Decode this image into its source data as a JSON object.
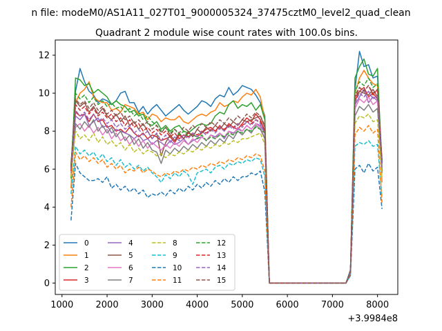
{
  "suptitle": "n file: modeM0/AS1A11_027T01_9000005324_37475cztM0_level2_quad_clean",
  "chart_data": {
    "type": "line",
    "title": "Quadrant 2 module wise count rates with 100.0s bins.",
    "xlabel": "",
    "ylabel": "",
    "x_offset_label": "+3.9984e8",
    "xlim": [
      850,
      8450
    ],
    "ylim": [
      -0.6,
      12.8
    ],
    "x_ticks": [
      1000,
      2000,
      3000,
      4000,
      5000,
      6000,
      7000,
      8000
    ],
    "x_tick_labels": [
      "1000",
      "2000",
      "3000",
      "4000",
      "5000",
      "6000",
      "7000",
      "8000"
    ],
    "y_ticks": [
      0,
      2,
      4,
      6,
      8,
      10,
      12
    ],
    "y_tick_labels": [
      "0",
      "2",
      "4",
      "6",
      "8",
      "10",
      "12"
    ],
    "grid": false,
    "legend_position": "lower-left",
    "legend_columns": 4,
    "x": [
      1200,
      1300,
      1400,
      1500,
      1600,
      1700,
      1800,
      1900,
      2000,
      2100,
      2200,
      2300,
      2400,
      2500,
      2600,
      2700,
      2800,
      2900,
      3000,
      3100,
      3200,
      3300,
      3400,
      3500,
      3600,
      3700,
      3800,
      3900,
      4000,
      4100,
      4200,
      4300,
      4400,
      4500,
      4600,
      4700,
      4800,
      4900,
      5000,
      5100,
      5200,
      5300,
      5400,
      5500,
      5600,
      5700,
      5800,
      5900,
      6000,
      6100,
      6200,
      6300,
      6400,
      6500,
      6600,
      6700,
      6800,
      6900,
      7000,
      7100,
      7200,
      7300,
      7400,
      7500,
      7600,
      7700,
      7800,
      7900,
      8000,
      8100
    ],
    "series": [
      {
        "name": "0",
        "dash": "solid",
        "color": "#1f77b4",
        "values": [
          6.0,
          10.1,
          11.3,
          10.6,
          10.1,
          9.9,
          9.5,
          9.7,
          9.6,
          9.4,
          9.6,
          10.0,
          10.1,
          9.5,
          9.5,
          9.0,
          9.3,
          8.9,
          9.2,
          9.4,
          9.1,
          8.8,
          9.0,
          9.2,
          9.4,
          9.1,
          8.9,
          9.1,
          9.3,
          9.6,
          9.5,
          9.3,
          9.7,
          9.9,
          9.8,
          10.3,
          9.9,
          10.1,
          10.4,
          10.3,
          10.2,
          9.9,
          9.5,
          8.8,
          0,
          0,
          0,
          0,
          0,
          0,
          0,
          0,
          0,
          0,
          0,
          0,
          0,
          0,
          0,
          0,
          0,
          0,
          0.7,
          10.2,
          12.2,
          11.4,
          11.5,
          10.8,
          10.9,
          6.3
        ]
      },
      {
        "name": "1",
        "dash": "solid",
        "color": "#ff7f0e",
        "values": [
          5.0,
          9.5,
          10.0,
          10.2,
          10.6,
          9.8,
          9.6,
          9.5,
          9.5,
          9.1,
          9.2,
          9.0,
          9.4,
          9.3,
          9.2,
          8.9,
          9.0,
          8.6,
          8.9,
          8.8,
          8.5,
          8.7,
          8.6,
          8.6,
          8.8,
          8.5,
          8.4,
          8.6,
          8.8,
          8.9,
          8.8,
          9.0,
          9.1,
          9.5,
          9.3,
          9.4,
          9.6,
          9.5,
          9.8,
          10.0,
          9.9,
          10.2,
          9.8,
          8.6,
          0,
          0,
          0,
          0,
          0,
          0,
          0,
          0,
          0,
          0,
          0,
          0,
          0,
          0,
          0,
          0,
          0,
          0,
          0.6,
          10.0,
          10.8,
          11.2,
          10.8,
          10.5,
          10.4,
          5.3
        ]
      },
      {
        "name": "2",
        "dash": "solid",
        "color": "#2ca02c",
        "values": [
          5.5,
          10.8,
          10.7,
          10.4,
          10.5,
          10.0,
          10.2,
          10.0,
          9.8,
          9.4,
          9.6,
          9.4,
          9.3,
          9.0,
          9.1,
          8.8,
          8.9,
          8.4,
          8.3,
          8.5,
          8.1,
          8.3,
          8.0,
          8.2,
          8.3,
          8.0,
          7.9,
          8.1,
          8.3,
          8.4,
          8.3,
          8.4,
          8.8,
          9.0,
          8.9,
          9.4,
          9.6,
          9.2,
          9.4,
          9.3,
          9.5,
          9.1,
          9.4,
          8.6,
          0,
          0,
          0,
          0,
          0,
          0,
          0,
          0,
          0,
          0,
          0,
          0,
          0,
          0,
          0,
          0,
          0,
          0,
          0.6,
          10.8,
          11.4,
          11.8,
          11.0,
          10.9,
          11.3,
          5.9
        ]
      },
      {
        "name": "3",
        "dash": "solid",
        "color": "#d62728",
        "values": [
          6.3,
          9.0,
          8.8,
          8.9,
          8.5,
          8.9,
          8.5,
          8.6,
          8.2,
          8.3,
          8.0,
          8.1,
          7.9,
          8.2,
          7.9,
          7.7,
          7.9,
          7.6,
          7.8,
          7.7,
          7.5,
          7.6,
          7.7,
          7.4,
          7.8,
          7.6,
          7.9,
          7.8,
          7.7,
          7.9,
          8.1,
          8.2,
          8.0,
          8.3,
          8.0,
          8.4,
          8.2,
          8.1,
          8.4,
          8.7,
          8.5,
          8.9,
          8.6,
          8.0,
          0,
          0,
          0,
          0,
          0,
          0,
          0,
          0,
          0,
          0,
          0,
          0,
          0,
          0,
          0,
          0,
          0,
          0,
          0.6,
          9.6,
          10.1,
          10.3,
          9.8,
          10.0,
          9.7,
          6.5
        ]
      },
      {
        "name": "4",
        "dash": "solid",
        "color": "#9467bd",
        "values": [
          6.0,
          8.8,
          8.6,
          8.9,
          8.3,
          8.5,
          8.7,
          8.2,
          8.3,
          7.9,
          8.1,
          8.0,
          7.9,
          7.8,
          7.6,
          7.8,
          7.5,
          7.6,
          7.3,
          7.5,
          7.4,
          7.2,
          7.5,
          7.3,
          7.4,
          7.6,
          7.3,
          7.5,
          7.6,
          7.7,
          7.5,
          7.8,
          7.7,
          7.9,
          7.6,
          8.0,
          7.9,
          8.1,
          8.0,
          8.3,
          8.1,
          8.4,
          8.3,
          7.9,
          0,
          0,
          0,
          0,
          0,
          0,
          0,
          0,
          0,
          0,
          0,
          0,
          0,
          0,
          0,
          0,
          0,
          0,
          0.6,
          9.4,
          9.8,
          10.2,
          9.5,
          9.8,
          9.6,
          6.2
        ]
      },
      {
        "name": "5",
        "dash": "solid",
        "color": "#8c564b",
        "values": [
          6.1,
          9.6,
          9.3,
          9.5,
          9.0,
          9.3,
          8.9,
          9.2,
          8.8,
          8.6,
          8.9,
          8.5,
          8.8,
          8.3,
          8.5,
          8.1,
          8.4,
          8.0,
          7.6,
          7.9,
          6.7,
          7.4,
          7.8,
          7.5,
          7.9,
          7.6,
          8.0,
          7.7,
          8.1,
          7.9,
          8.2,
          8.0,
          8.3,
          8.1,
          8.4,
          8.2,
          8.5,
          8.3,
          8.6,
          8.5,
          8.6,
          8.7,
          8.8,
          8.2,
          0,
          0,
          0,
          0,
          0,
          0,
          0,
          0,
          0,
          0,
          0,
          0,
          0,
          0,
          0,
          0,
          0,
          0,
          0.6,
          9.8,
          10.1,
          10.0,
          9.9,
          10.2,
          9.8,
          6.3
        ]
      },
      {
        "name": "6",
        "dash": "solid",
        "color": "#e377c2",
        "values": [
          5.7,
          8.2,
          8.4,
          8.0,
          8.3,
          7.9,
          8.2,
          7.8,
          8.1,
          7.6,
          7.9,
          7.5,
          7.7,
          7.3,
          7.6,
          7.2,
          7.5,
          7.1,
          7.4,
          7.2,
          7.0,
          7.3,
          7.1,
          7.4,
          7.2,
          7.5,
          7.3,
          7.6,
          7.4,
          7.7,
          7.5,
          7.8,
          7.6,
          7.9,
          7.7,
          8.0,
          7.8,
          8.2,
          8.0,
          8.3,
          8.1,
          8.4,
          8.2,
          7.6,
          0,
          0,
          0,
          0,
          0,
          0,
          0,
          0,
          0,
          0,
          0,
          0,
          0,
          0,
          0,
          0,
          0,
          0,
          0.6,
          9.2,
          9.7,
          9.5,
          9.8,
          9.4,
          9.6,
          6.0
        ]
      },
      {
        "name": "7",
        "dash": "solid",
        "color": "#7f7f7f",
        "values": [
          5.8,
          8.4,
          8.1,
          8.5,
          8.2,
          8.6,
          8.0,
          8.3,
          7.9,
          8.2,
          7.7,
          8.0,
          7.5,
          7.8,
          7.3,
          7.6,
          7.1,
          7.4,
          7.0,
          6.9,
          6.3,
          7.0,
          6.8,
          7.1,
          6.9,
          7.2,
          7.0,
          7.3,
          7.1,
          7.4,
          7.2,
          7.5,
          7.3,
          7.6,
          7.4,
          7.8,
          7.6,
          8.0,
          7.8,
          8.1,
          7.9,
          8.3,
          8.1,
          7.6,
          0,
          0,
          0,
          0,
          0,
          0,
          0,
          0,
          0,
          0,
          0,
          0,
          0,
          0,
          0,
          0,
          0,
          0,
          0.6,
          8.8,
          9.3,
          9.1,
          9.4,
          9.0,
          9.2,
          5.8
        ]
      },
      {
        "name": "8",
        "dash": "dashed",
        "color": "#bcbd22",
        "values": [
          5.6,
          8.0,
          7.6,
          7.8,
          7.5,
          7.9,
          7.4,
          7.7,
          7.3,
          7.5,
          7.2,
          7.4,
          7.0,
          7.3,
          6.9,
          7.1,
          6.8,
          7.0,
          6.9,
          6.7,
          6.8,
          6.6,
          6.8,
          6.7,
          6.9,
          6.8,
          7.0,
          6.9,
          7.1,
          7.0,
          7.2,
          7.1,
          7.3,
          7.2,
          7.4,
          7.3,
          7.5,
          7.4,
          7.6,
          7.6,
          7.7,
          7.8,
          7.9,
          7.3,
          0,
          0,
          0,
          0,
          0,
          0,
          0,
          0,
          0,
          0,
          0,
          0,
          0,
          0,
          0,
          0,
          0,
          0,
          0.5,
          8.4,
          8.8,
          8.7,
          8.9,
          8.5,
          8.6,
          5.5
        ]
      },
      {
        "name": "9",
        "dash": "dashed",
        "color": "#17becf",
        "values": [
          4.7,
          7.2,
          6.8,
          7.0,
          6.7,
          6.9,
          6.5,
          6.8,
          6.4,
          6.6,
          6.2,
          6.5,
          6.1,
          6.3,
          6.0,
          6.2,
          5.9,
          6.1,
          5.8,
          5.6,
          5.3,
          5.7,
          5.5,
          5.8,
          5.6,
          5.9,
          5.7,
          5.2,
          5.8,
          5.9,
          6.0,
          5.8,
          6.1,
          6.2,
          6.0,
          6.3,
          6.2,
          6.4,
          6.3,
          6.5,
          6.4,
          6.6,
          6.5,
          5.6,
          0,
          0,
          0,
          0,
          0,
          0,
          0,
          0,
          0,
          0,
          0,
          0,
          0,
          0,
          0,
          0,
          0,
          0,
          0.4,
          7.2,
          7.4,
          7.3,
          7.5,
          7.2,
          7.3,
          4.5
        ]
      },
      {
        "name": "10",
        "dash": "dashed",
        "color": "#1f77b4",
        "values": [
          3.3,
          6.3,
          5.8,
          5.6,
          5.4,
          5.4,
          5.5,
          5.3,
          5.6,
          5.0,
          5.2,
          4.9,
          5.1,
          4.8,
          5.0,
          4.7,
          4.9,
          4.5,
          4.7,
          4.6,
          4.8,
          4.6,
          4.9,
          4.7,
          5.0,
          4.8,
          5.1,
          4.9,
          5.2,
          5.0,
          5.3,
          5.1,
          5.4,
          5.2,
          5.5,
          5.3,
          5.6,
          5.4,
          5.6,
          5.6,
          5.8,
          5.7,
          5.9,
          4.8,
          0,
          0,
          0,
          0,
          0,
          0,
          0,
          0,
          0,
          0,
          0,
          0,
          0,
          0,
          0,
          0,
          0,
          0,
          0.4,
          6.0,
          6.2,
          5.8,
          6.3,
          5.9,
          6.1,
          3.9
        ]
      },
      {
        "name": "11",
        "dash": "dashed",
        "color": "#ff7f0e",
        "values": [
          4.0,
          6.9,
          6.5,
          6.7,
          6.4,
          6.6,
          6.3,
          6.5,
          6.1,
          6.3,
          6.0,
          6.2,
          5.8,
          6.0,
          5.9,
          6.1,
          5.8,
          6.0,
          5.9,
          5.7,
          5.6,
          5.8,
          5.7,
          5.9,
          5.8,
          6.0,
          5.9,
          6.1,
          6.0,
          6.2,
          6.1,
          6.3,
          6.2,
          6.4,
          6.3,
          6.5,
          6.4,
          6.6,
          6.5,
          6.7,
          6.6,
          6.8,
          6.7,
          5.9,
          0,
          0,
          0,
          0,
          0,
          0,
          0,
          0,
          0,
          0,
          0,
          0,
          0,
          0,
          0,
          0,
          0,
          0,
          0.5,
          7.8,
          8.2,
          8.0,
          8.3,
          7.9,
          8.1,
          4.2
        ]
      },
      {
        "name": "12",
        "dash": "dashed",
        "color": "#2ca02c",
        "values": [
          6.2,
          10.0,
          9.7,
          9.9,
          9.5,
          9.8,
          9.4,
          9.6,
          9.3,
          9.5,
          9.2,
          9.3,
          9.0,
          9.2,
          8.8,
          9.0,
          8.6,
          8.8,
          8.5,
          8.3,
          8.0,
          8.2,
          7.9,
          8.1,
          7.8,
          8.0,
          7.7,
          7.9,
          7.6,
          7.8,
          7.5,
          7.7,
          7.6,
          7.8,
          7.7,
          7.9,
          7.8,
          8.0,
          7.9,
          8.1,
          8.0,
          8.2,
          8.1,
          7.9,
          0,
          0,
          0,
          0,
          0,
          0,
          0,
          0,
          0,
          0,
          0,
          0,
          0,
          0,
          0,
          0,
          0,
          0,
          0.6,
          10.1,
          10.6,
          10.4,
          10.8,
          10.3,
          10.5,
          6.4
        ]
      },
      {
        "name": "13",
        "dash": "dashed",
        "color": "#d62728",
        "values": [
          5.9,
          9.4,
          9.1,
          9.3,
          8.9,
          9.2,
          8.8,
          9.0,
          8.7,
          8.9,
          8.5,
          8.7,
          8.3,
          8.6,
          8.2,
          8.4,
          8.0,
          8.2,
          7.9,
          8.1,
          7.8,
          8.0,
          7.7,
          7.9,
          7.6,
          7.8,
          7.7,
          7.9,
          7.8,
          8.0,
          7.9,
          8.1,
          8.0,
          8.2,
          8.1,
          8.3,
          8.2,
          8.4,
          8.3,
          8.5,
          8.4,
          8.6,
          8.5,
          8.0,
          0,
          0,
          0,
          0,
          0,
          0,
          0,
          0,
          0,
          0,
          0,
          0,
          0,
          0,
          0,
          0,
          0,
          0,
          0.6,
          9.8,
          10.3,
          10.1,
          10.4,
          9.9,
          10.2,
          6.3
        ]
      },
      {
        "name": "14",
        "dash": "dashed",
        "color": "#9467bd",
        "values": [
          6.0,
          9.1,
          8.8,
          9.0,
          8.6,
          8.9,
          8.5,
          8.7,
          8.4,
          8.6,
          8.2,
          8.4,
          8.1,
          8.3,
          7.9,
          8.1,
          7.8,
          8.0,
          7.6,
          7.9,
          7.5,
          7.8,
          7.4,
          7.7,
          7.5,
          7.8,
          7.6,
          7.9,
          7.7,
          8.0,
          7.8,
          8.1,
          7.9,
          8.2,
          8.0,
          8.3,
          8.1,
          8.4,
          8.2,
          8.5,
          8.3,
          8.6,
          8.4,
          7.9,
          0,
          0,
          0,
          0,
          0,
          0,
          0,
          0,
          0,
          0,
          0,
          0,
          0,
          0,
          0,
          0,
          0,
          0,
          0.6,
          9.5,
          10.0,
          9.8,
          10.1,
          9.7,
          9.9,
          6.1
        ]
      },
      {
        "name": "15",
        "dash": "dashed",
        "color": "#8c564b",
        "values": [
          6.1,
          9.7,
          9.4,
          9.6,
          9.2,
          9.5,
          9.1,
          9.3,
          8.9,
          9.1,
          8.8,
          9.0,
          8.6,
          8.8,
          8.4,
          8.6,
          8.3,
          8.5,
          8.1,
          8.3,
          7.9,
          8.2,
          7.8,
          8.1,
          7.9,
          8.2,
          8.0,
          8.3,
          8.1,
          8.4,
          8.2,
          8.5,
          8.3,
          8.6,
          8.4,
          8.7,
          8.5,
          8.8,
          8.6,
          8.9,
          8.7,
          9.0,
          8.8,
          8.3,
          0,
          0,
          0,
          0,
          0,
          0,
          0,
          0,
          0,
          0,
          0,
          0,
          0,
          0,
          0,
          0,
          0,
          0,
          0.6,
          9.9,
          10.3,
          10.1,
          10.4,
          10.0,
          10.2,
          6.5
        ]
      }
    ]
  }
}
